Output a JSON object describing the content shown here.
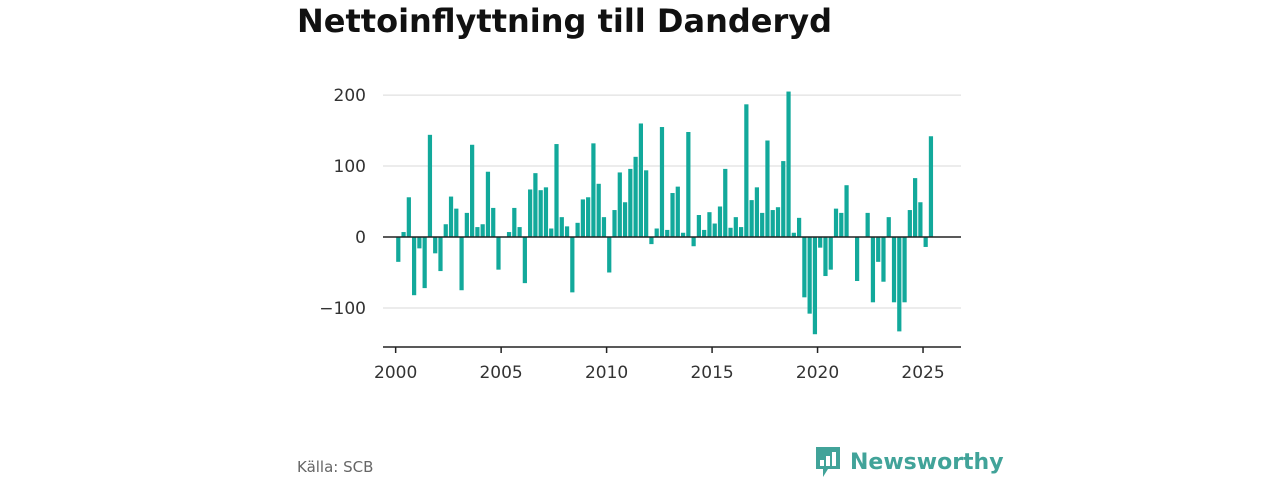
{
  "title": "Nettoinflyttning till Danderyd",
  "source": "Källa: SCB",
  "brand": {
    "name": "Newsworthy",
    "icon": "newsworthy-logo-icon",
    "color": "#41a399"
  },
  "colors": {
    "bar": "#12a99b",
    "grid": "#d9d9d9",
    "axis": "#222222"
  },
  "chart_data": {
    "type": "bar",
    "title": "Nettoinflyttning till Danderyd",
    "xlabel": "",
    "ylabel": "",
    "ylim": [
      -155,
      210
    ],
    "xlim": [
      1999.4,
      2026.8
    ],
    "yticks": [
      200,
      100,
      0,
      -100
    ],
    "ytick_labels": [
      "200",
      "100",
      "0",
      "−100"
    ],
    "xticks": [
      2000,
      2005,
      2010,
      2015,
      2020,
      2025
    ],
    "grid": true,
    "legend": "none",
    "x": [
      2000.125,
      2000.375,
      2000.625,
      2000.875,
      2001.125,
      2001.375,
      2001.625,
      2001.875,
      2002.125,
      2002.375,
      2002.625,
      2002.875,
      2003.125,
      2003.375,
      2003.625,
      2003.875,
      2004.125,
      2004.375,
      2004.625,
      2004.875,
      2005.125,
      2005.375,
      2005.625,
      2005.875,
      2006.125,
      2006.375,
      2006.625,
      2006.875,
      2007.125,
      2007.375,
      2007.625,
      2007.875,
      2008.125,
      2008.375,
      2008.625,
      2008.875,
      2009.125,
      2009.375,
      2009.625,
      2009.875,
      2010.125,
      2010.375,
      2010.625,
      2010.875,
      2011.125,
      2011.375,
      2011.625,
      2011.875,
      2012.125,
      2012.375,
      2012.625,
      2012.875,
      2013.125,
      2013.375,
      2013.625,
      2013.875,
      2014.125,
      2014.375,
      2014.625,
      2014.875,
      2015.125,
      2015.375,
      2015.625,
      2015.875,
      2016.125,
      2016.375,
      2016.625,
      2016.875,
      2017.125,
      2017.375,
      2017.625,
      2017.875,
      2018.125,
      2018.375,
      2018.625,
      2018.875,
      2019.125,
      2019.375,
      2019.625,
      2019.875,
      2020.125,
      2020.375,
      2020.625,
      2020.875,
      2021.125,
      2021.375,
      2021.625,
      2021.875,
      2022.125,
      2022.375,
      2022.625,
      2022.875,
      2023.125,
      2023.375,
      2023.625,
      2023.875,
      2024.125,
      2024.375,
      2024.625,
      2024.875,
      2025.125,
      2025.375
    ],
    "values": [
      -35,
      7,
      56,
      -82,
      -16,
      -72,
      144,
      -23,
      -48,
      18,
      57,
      40,
      -75,
      34,
      130,
      14,
      18,
      92,
      41,
      -46,
      0,
      7,
      41,
      14,
      -65,
      67,
      90,
      66,
      70,
      12,
      131,
      28,
      15,
      -78,
      20,
      53,
      56,
      132,
      75,
      28,
      -50,
      38,
      91,
      49,
      96,
      113,
      160,
      94,
      -10,
      12,
      155,
      10,
      62,
      71,
      6,
      148,
      -13,
      31,
      10,
      35,
      19,
      43,
      96,
      13,
      28,
      14,
      187,
      52,
      70,
      34,
      136,
      38,
      42,
      107,
      205,
      6,
      27,
      -85,
      -108,
      -137,
      -15,
      -55,
      -46,
      40,
      34,
      73,
      0,
      -62,
      0,
      34,
      -92,
      -35,
      -63,
      28,
      -92,
      -133,
      -92,
      38,
      83,
      49,
      -14,
      142
    ]
  }
}
